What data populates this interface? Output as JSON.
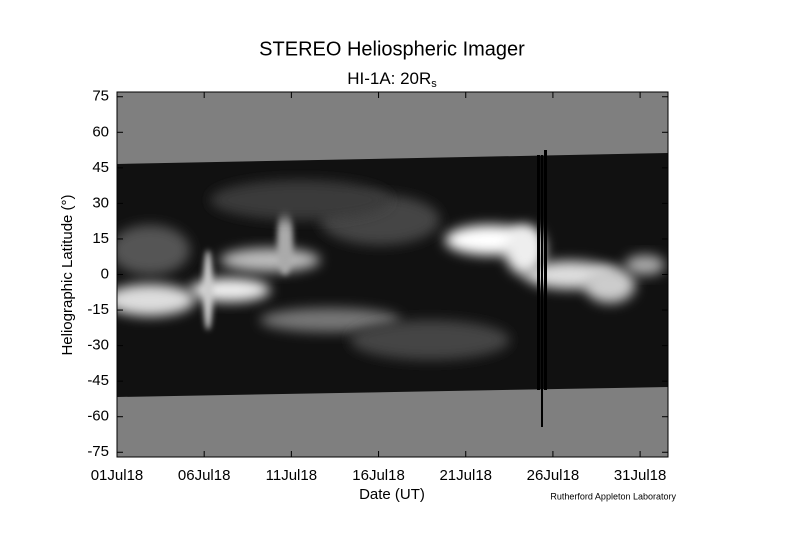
{
  "chart_data": {
    "type": "image",
    "title": "STEREO Heliospheric Imager",
    "subtitle": {
      "text": "HI-1A: 20R",
      "subscript": "s"
    },
    "x_label": "Date (UT)",
    "y_label": "Heliographic Latitude (°)",
    "credit": "Rutherford Appleton Laboratory",
    "xlim": [
      1,
      32.6
    ],
    "xticks": [
      {
        "value": 1,
        "label": "01Jul18"
      },
      {
        "value": 6,
        "label": "06Jul18"
      },
      {
        "value": 11,
        "label": "11Jul18"
      },
      {
        "value": 16,
        "label": "16Jul18"
      },
      {
        "value": 21,
        "label": "21Jul18"
      },
      {
        "value": 26,
        "label": "26Jul18"
      },
      {
        "value": 31,
        "label": "31Jul18"
      }
    ],
    "ylim": [
      -77,
      77
    ],
    "yticks": [
      75,
      60,
      45,
      30,
      15,
      0,
      -15,
      -30,
      -45,
      -60,
      -75
    ]
  }
}
